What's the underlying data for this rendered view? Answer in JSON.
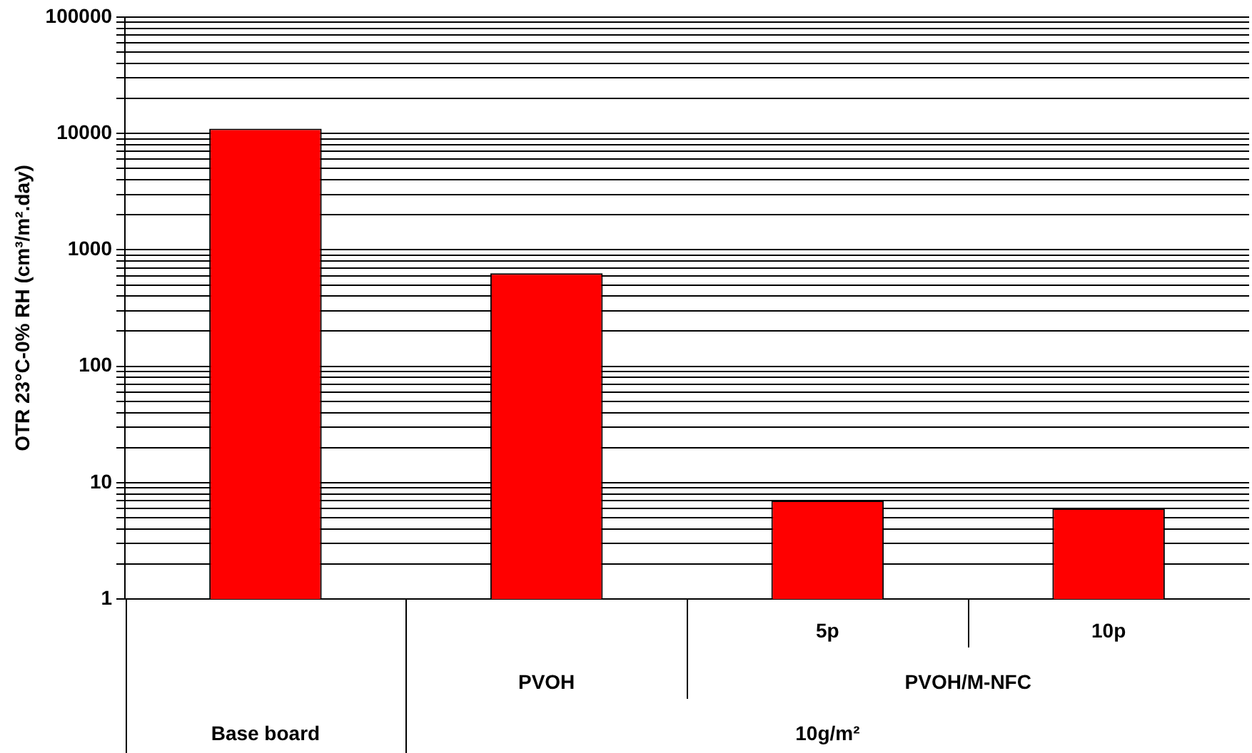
{
  "chart_data": {
    "type": "bar",
    "ylabel": "OTR 23°C-0% RH (cm³/m².day)",
    "categories": [
      null,
      null,
      "5p",
      "10p"
    ],
    "values": [
      11000,
      630,
      7,
      6
    ],
    "color": "#ff0000",
    "annotations": [
      "Base board",
      "PVOH",
      "PVOH/M-NFC",
      "10g/m²"
    ],
    "log": true,
    "ylim": [
      1,
      100000
    ],
    "yticks": [
      1,
      {
        "value": 2,
        "label": null
      },
      {
        "value": 3,
        "label": null
      },
      {
        "value": 4,
        "label": null
      },
      {
        "value": 5,
        "label": null
      },
      {
        "value": 6,
        "label": null
      },
      {
        "value": 7,
        "label": null
      },
      {
        "value": 8,
        "label": null
      },
      {
        "value": 9,
        "label": null
      },
      10,
      {
        "value": 20,
        "label": null
      },
      {
        "value": 30,
        "label": null
      },
      {
        "value": 40,
        "label": null
      },
      {
        "value": 50,
        "label": null
      },
      {
        "value": 60,
        "label": null
      },
      {
        "value": 70,
        "label": null
      },
      {
        "value": 80,
        "label": null
      },
      {
        "value": 90,
        "label": null
      },
      100,
      {
        "value": 200,
        "label": null
      },
      {
        "value": 300,
        "label": null
      },
      {
        "value": 400,
        "label": null
      },
      {
        "value": 500,
        "label": null
      },
      {
        "value": 600,
        "label": null
      },
      {
        "value": 700,
        "label": null
      },
      {
        "value": 800,
        "label": null
      },
      {
        "value": 900,
        "label": null
      },
      1000,
      {
        "value": 2000,
        "label": null
      },
      {
        "value": 3000,
        "label": null
      },
      {
        "value": 4000,
        "label": null
      },
      {
        "value": 5000,
        "label": null
      },
      {
        "value": 6000,
        "label": null
      },
      {
        "value": 7000,
        "label": null
      },
      {
        "value": 8000,
        "label": null
      },
      {
        "value": 9000,
        "label": null
      },
      10000,
      {
        "value": 20000,
        "label": null
      },
      {
        "value": 30000,
        "label": null
      },
      {
        "value": 40000,
        "label": null
      },
      {
        "value": 50000,
        "label": null
      },
      {
        "value": 60000,
        "label": null
      },
      {
        "value": 70000,
        "label": null
      },
      {
        "value": 80000,
        "label": null
      },
      {
        "value": 90000,
        "label": null
      },
      100000
    ],
    "grid": "y",
    "legend": false
  }
}
